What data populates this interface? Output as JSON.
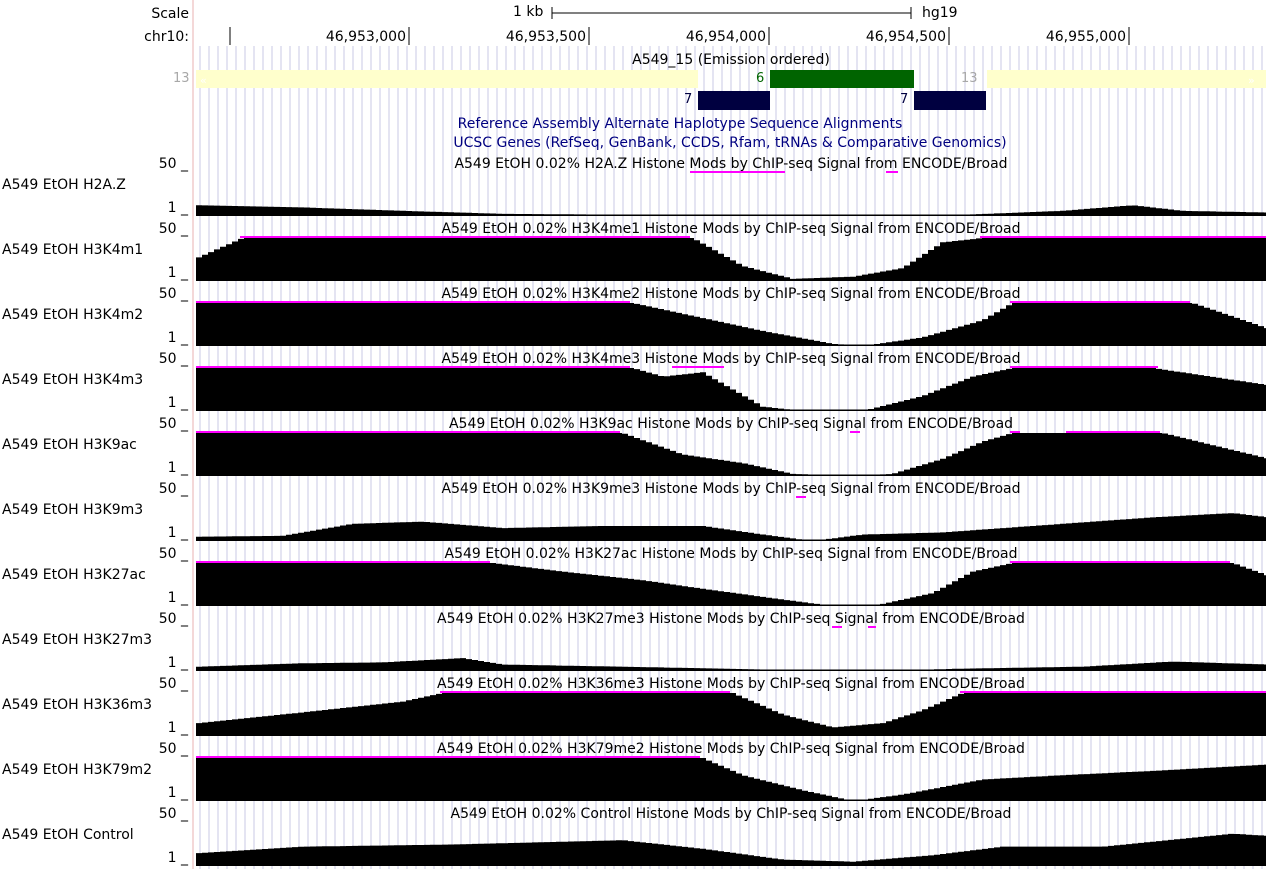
{
  "header": {
    "scale_label": "Scale",
    "scale_bar_label": "1 kb",
    "assembly": "hg19",
    "chrom_label": "chr10:",
    "positions": [
      "46,953,000",
      "46,953,500",
      "46,954,000",
      "46,954,500",
      "46,955,000"
    ]
  },
  "chromhmm": {
    "title": "A549_15 (Emission ordered)",
    "state_labels": [
      "13",
      "6",
      "13",
      "7",
      "7"
    ]
  },
  "titles": {
    "alt_haplotype": "Reference Assembly Alternate Haplotype Sequence Alignments",
    "ucsc_genes": "UCSC Genes (RefSeq, GenBank, CCDS, Rfam, tRNAs & Comparative Genomics)"
  },
  "axis": {
    "max": "50 _",
    "min": "1 _"
  },
  "tracks": [
    {
      "label": "A549 EtOH H2A.Z",
      "title": "A549 EtOH 0.02% H2A.Z Histone Mods by ChIP-seq Signal from ENCODE/Broad"
    },
    {
      "label": "A549 EtOH H3K4m1",
      "title": "A549 EtOH 0.02% H3K4me1 Histone Mods by ChIP-seq Signal from ENCODE/Broad"
    },
    {
      "label": "A549 EtOH H3K4m2",
      "title": "A549 EtOH 0.02% H3K4me2 Histone Mods by ChIP-seq Signal from ENCODE/Broad"
    },
    {
      "label": "A549 EtOH H3K4m3",
      "title": "A549 EtOH 0.02% H3K4me3 Histone Mods by ChIP-seq Signal from ENCODE/Broad"
    },
    {
      "label": "A549 EtOH H3K9ac",
      "title": "A549 EtOH 0.02% H3K9ac Histone Mods by ChIP-seq Signal from ENCODE/Broad"
    },
    {
      "label": "A549 EtOH H3K9m3",
      "title": "A549 EtOH 0.02% H3K9me3 Histone Mods by ChIP-seq Signal from ENCODE/Broad"
    },
    {
      "label": "A549 EtOH H3K27ac",
      "title": "A549 EtOH 0.02% H3K27ac Histone Mods by ChIP-seq Signal from ENCODE/Broad"
    },
    {
      "label": "A549 EtOH H3K27m3",
      "title": "A549 EtOH 0.02% H3K27me3 Histone Mods by ChIP-seq Signal from ENCODE/Broad"
    },
    {
      "label": "A549 EtOH H3K36m3",
      "title": "A549 EtOH 0.02% H3K36me3 Histone Mods by ChIP-seq Signal from ENCODE/Broad"
    },
    {
      "label": "A549 EtOH H3K79m2",
      "title": "A549 EtOH 0.02% H3K79me2 Histone Mods by ChIP-seq Signal from ENCODE/Broad"
    },
    {
      "label": "A549 EtOH Control",
      "title": "A549 EtOH 0.02% Control Histone Mods by ChIP-seq Signal from ENCODE/Broad"
    }
  ],
  "colors": {
    "signal": "#000000",
    "clipped": "#ff00ff",
    "guide": "#c8c8e6",
    "state13": "#ffffcc",
    "state6": "#006400",
    "state7": "#000040",
    "track_title_blue": "#000080",
    "axis_red": "#cc0000"
  }
}
